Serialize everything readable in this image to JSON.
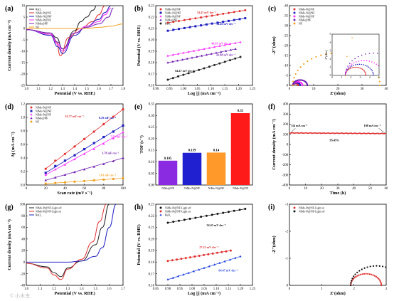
{
  "chart_data": [
    {
      "panel": "(a)",
      "type": "line",
      "xlabel": "Potential (V vs. RHE)",
      "ylabel": "Current density (mA cm⁻²)",
      "xlim": [
        1.0,
        1.8
      ],
      "ylim": [
        -25,
        10
      ],
      "xticks": [
        "1.0",
        "1.1",
        "1.2",
        "1.3",
        "1.4",
        "1.5",
        "1.6",
        "1.7",
        "1.8"
      ],
      "yticks": [
        "-25",
        "-20",
        "-15",
        "-10",
        "-5",
        "0",
        "5",
        "10"
      ],
      "legend_position": "top-left",
      "series": [
        {
          "name": "RuO₂",
          "color": "#222222",
          "x": [
            1.0,
            1.2,
            1.25,
            1.3,
            1.4,
            1.45,
            1.5,
            1.55,
            1.6
          ],
          "y": [
            -0.5,
            -2,
            -4,
            -9,
            -1,
            3,
            5,
            8,
            12
          ]
        },
        {
          "name": "NiMo-Pt@NF",
          "color": "#e03030",
          "x": [
            1.0,
            1.2,
            1.25,
            1.28,
            1.35,
            1.45,
            1.55,
            1.6,
            1.65
          ],
          "y": [
            -0.5,
            -2.5,
            -6,
            -12,
            -4,
            0,
            3,
            6,
            10
          ]
        },
        {
          "name": "NiMo-Ni@NF",
          "color": "#2020c0",
          "x": [
            1.0,
            1.2,
            1.26,
            1.3,
            1.4,
            1.5,
            1.6,
            1.65,
            1.7
          ],
          "y": [
            -0.5,
            -3,
            -8,
            -11,
            -3,
            1,
            4,
            7,
            10
          ]
        },
        {
          "name": "NiMo-Pt@NF",
          "color": "#ff30ff",
          "x": [
            1.0,
            1.2,
            1.26,
            1.3,
            1.4,
            1.5,
            1.6,
            1.65,
            1.7
          ],
          "y": [
            -0.5,
            -2.5,
            -7,
            -10,
            -2,
            1,
            3,
            6,
            9
          ]
        },
        {
          "name": "NiMo@NF",
          "color": "#7020b0",
          "x": [
            1.0,
            1.2,
            1.26,
            1.3,
            1.4,
            1.5,
            1.6,
            1.68,
            1.72
          ],
          "y": [
            -0.5,
            -2,
            -6,
            -9,
            -2,
            0.5,
            2,
            5,
            9
          ]
        },
        {
          "name": "NF",
          "color": "#f0a020",
          "x": [
            1.0,
            1.2,
            1.3,
            1.4,
            1.5,
            1.6,
            1.7,
            1.8
          ],
          "y": [
            0,
            0,
            0,
            0,
            0,
            0.5,
            1,
            2
          ]
        }
      ]
    },
    {
      "panel": "(b)",
      "type": "scatter",
      "xlabel": "Log |j| (mA cm⁻²)",
      "ylabel": "Potential (V vs. RHE)",
      "xlim": [
        0.85,
        1.25
      ],
      "ylim": [
        0.16,
        0.23
      ],
      "xticks": [
        "0.90",
        "0.95",
        "1.00",
        "1.05",
        "1.10",
        "1.15",
        "1.20",
        "1.25"
      ],
      "yticks": [
        "0.16",
        "0.17",
        "0.18",
        "0.19",
        "0.20",
        "0.21",
        "0.22",
        "0.23"
      ],
      "legend_position": "top-left",
      "series": [
        {
          "name": "NiMo-Pt@NF",
          "color": "#e03030",
          "marker": "circle",
          "label": "34.43 mV dec⁻¹",
          "x": [
            0.9,
            1.22
          ],
          "y": [
            0.215,
            0.226
          ]
        },
        {
          "name": "NiMo-Ni@NF",
          "color": "#2020c0",
          "marker": "square",
          "label": "34.46 mV dec⁻¹",
          "x": [
            0.9,
            1.22
          ],
          "y": [
            0.208,
            0.219
          ]
        },
        {
          "name": "NiMo-Pt@NF",
          "color": "#ff30ff",
          "marker": "triangle",
          "label": "40.93 mV dec⁻¹",
          "x": [
            0.9,
            1.2
          ],
          "y": [
            0.186,
            0.198
          ]
        },
        {
          "name": "NiMo@NF",
          "color": "#7020b0",
          "marker": "triangle",
          "label": "41.88 mV dec⁻¹",
          "x": [
            0.9,
            1.18
          ],
          "y": [
            0.18,
            0.192
          ]
        },
        {
          "name": "RuO₂",
          "color": "#222222",
          "marker": "circle",
          "label": "64.47 mV dec⁻¹",
          "x": [
            0.9,
            1.2
          ],
          "y": [
            0.165,
            0.185
          ]
        }
      ]
    },
    {
      "panel": "(c)",
      "type": "scatter",
      "xlabel": "Z'(ohm)",
      "ylabel": "-Z''(ohm)",
      "xlim": [
        0,
        40
      ],
      "ylim": [
        0,
        -40
      ],
      "xticks": [
        "0",
        "10",
        "20",
        "30",
        "40"
      ],
      "yticks": [
        "0",
        "-5",
        "-10",
        "-15",
        "-20",
        "-25",
        "-30",
        "-35",
        "-40"
      ],
      "legend_position": "top-left",
      "series": [
        {
          "name": "NiMo-Pt@NF",
          "color": "#e03030",
          "R0": 1.4,
          "R": 2.2
        },
        {
          "name": "NiMo-Ni@NF",
          "color": "#2020c0",
          "R0": 1.4,
          "R": 3.0
        },
        {
          "name": "NiMo-Pt@NF",
          "color": "#ff30ff",
          "R0": 1.4,
          "R": 4.0
        },
        {
          "name": "NiMo@NF",
          "color": "#7020b0",
          "R0": 1.4,
          "R": 6.0
        },
        {
          "name": "NF",
          "color": "#f0a020",
          "R0": 1.4,
          "R": 36.0
        }
      ],
      "inset_xticks": [
        "0",
        "1",
        "2",
        "3",
        "4",
        "5"
      ],
      "inset_yticks": [
        "0",
        "-1",
        "-2",
        "-3",
        "-4",
        "-5"
      ],
      "inset_ylabel": "Z''(ohm)"
    },
    {
      "panel": "(d)",
      "type": "scatter",
      "xlabel": "Scan rate (mV s⁻¹)",
      "ylabel": "Δj (mA cm⁻²)",
      "xlim": [
        0,
        100
      ],
      "ylim": [
        0,
        1.2
      ],
      "xticks": [
        "0",
        "20",
        "40",
        "60",
        "80",
        "100"
      ],
      "yticks": [
        "0.0",
        "0.2",
        "0.4",
        "0.6",
        "0.8",
        "1.0",
        "1.2"
      ],
      "legend_position": "top-left",
      "series": [
        {
          "name": "NiMo-Pt@NF",
          "color": "#e03030",
          "marker": "circle",
          "label": "10.77 mF cm⁻²",
          "x": [
            20,
            30,
            40,
            50,
            60,
            70,
            80,
            90,
            100
          ],
          "y": [
            0.24,
            0.36,
            0.46,
            0.57,
            0.68,
            0.79,
            0.9,
            1.01,
            1.12
          ]
        },
        {
          "name": "NiMo-Ni@NF",
          "color": "#2020c0",
          "marker": "square",
          "label": "8.29 mF cm⁻²",
          "x": [
            20,
            30,
            40,
            50,
            60,
            70,
            80,
            90,
            100
          ],
          "y": [
            0.18,
            0.28,
            0.36,
            0.44,
            0.53,
            0.62,
            0.71,
            0.79,
            0.88
          ]
        },
        {
          "name": "NiMo-Pt@NF",
          "color": "#ff30ff",
          "marker": "triangle",
          "label": "7.54 mF cm⁻²",
          "x": [
            20,
            30,
            40,
            50,
            60,
            70,
            80,
            90,
            100
          ],
          "y": [
            0.15,
            0.23,
            0.3,
            0.38,
            0.46,
            0.53,
            0.61,
            0.69,
            0.78
          ]
        },
        {
          "name": "NiMo@NF",
          "color": "#7020b0",
          "marker": "triangle",
          "label": "3.78 mF cm⁻²",
          "x": [
            20,
            30,
            40,
            50,
            60,
            70,
            80,
            90,
            100
          ],
          "y": [
            0.07,
            0.11,
            0.15,
            0.19,
            0.23,
            0.27,
            0.31,
            0.35,
            0.4
          ]
        },
        {
          "name": "NF",
          "color": "#f0a020",
          "marker": "circle",
          "label": "1.03 mF cm⁻²",
          "x": [
            20,
            30,
            40,
            50,
            60,
            70,
            80,
            90,
            100
          ],
          "y": [
            0.02,
            0.03,
            0.04,
            0.05,
            0.06,
            0.07,
            0.08,
            0.09,
            0.1
          ]
        }
      ]
    },
    {
      "panel": "(e)",
      "type": "bar",
      "ylabel": "TOF (s⁻¹)",
      "ylim": [
        0,
        0.35
      ],
      "yticks": [
        "0.00",
        "0.05",
        "0.10",
        "0.15",
        "0.20",
        "0.25",
        "0.30",
        "0.35"
      ],
      "categories": [
        "NiMo@NF",
        "NiMo-Pt@NF",
        "NiMo-Ni@NF",
        "NiMo-Pt@NF"
      ],
      "values": [
        0.105,
        0.139,
        0.14,
        0.31
      ],
      "value_labels": [
        "0.105",
        "0.139",
        "0.14",
        "0.31"
      ],
      "colors": [
        "#8a2be2",
        "#2020d0",
        "#ff9a2a",
        "#ff1a1a"
      ]
    },
    {
      "panel": "(f)",
      "type": "line",
      "xlabel": "Time (h)",
      "ylabel": "Current density (mA cm⁻²)",
      "xlim": [
        0,
        65
      ],
      "ylim": [
        -400,
        400
      ],
      "xticks": [
        "0",
        "10",
        "20",
        "30",
        "40",
        "50",
        "60"
      ],
      "yticks": [
        "-400",
        "-300",
        "-200",
        "-100",
        "0",
        "100",
        "200",
        "300",
        "400"
      ],
      "series": [
        {
          "name": "",
          "color": "#e03030",
          "x": [
            0,
            10,
            20,
            30,
            40,
            50,
            60,
            65
          ],
          "y": [
            114,
            112,
            111,
            110,
            109,
            108,
            108,
            108
          ]
        }
      ],
      "annotations": [
        "114 mA cm⁻²",
        "95.45%",
        "108 mA cm⁻²"
      ]
    },
    {
      "panel": "(g)",
      "type": "line",
      "xlabel": "Potential (V vs. RHE)",
      "ylabel": "Current density (mA cm⁻²)",
      "xlim": [
        1.0,
        1.7
      ],
      "ylim": [
        -40,
        100
      ],
      "xticks": [
        "1.0",
        "1.1",
        "1.2",
        "1.3",
        "1.4",
        "1.5",
        "1.6",
        "1.7"
      ],
      "yticks": [
        "-40",
        "-20",
        "0",
        "20",
        "40",
        "60",
        "80",
        "100"
      ],
      "legend_position": "top-left",
      "series": [
        {
          "name": "NiMo-Pt@NF-Light off",
          "color": "#222222",
          "x": [
            1.0,
            1.15,
            1.2,
            1.25,
            1.3,
            1.4,
            1.5,
            1.55,
            1.6
          ],
          "y": [
            -2,
            -8,
            -18,
            -25,
            -10,
            2,
            30,
            60,
            100
          ]
        },
        {
          "name": "NiMo-Pt@NF-Light on",
          "color": "#e03030",
          "x": [
            1.0,
            1.15,
            1.2,
            1.25,
            1.3,
            1.4,
            1.48,
            1.53,
            1.58
          ],
          "y": [
            -2,
            -10,
            -22,
            -30,
            -12,
            5,
            35,
            70,
            100
          ]
        },
        {
          "name": "RuO₂",
          "color": "#2020c0",
          "x": [
            1.0,
            1.2,
            1.3,
            1.4,
            1.5,
            1.55,
            1.6,
            1.65
          ],
          "y": [
            0,
            0,
            0,
            2,
            10,
            25,
            60,
            100
          ]
        }
      ]
    },
    {
      "panel": "(h)",
      "type": "scatter",
      "xlabel": "Log |j| (mA cm⁻²)",
      "ylabel": "Potential (V vs. RHE)",
      "xlim": [
        0.85,
        1.25
      ],
      "ylim": [
        0.16,
        0.23
      ],
      "xticks": [
        "0.85",
        "0.90",
        "0.95",
        "1.00",
        "1.05",
        "1.10",
        "1.15",
        "1.20",
        "1.25"
      ],
      "yticks": [
        "0.16",
        "0.17",
        "0.18",
        "0.19",
        "0.20",
        "0.21",
        "0.22",
        "0.23"
      ],
      "legend_position": "top-left",
      "series": [
        {
          "name": "NiMo-Pt@NF-Light off",
          "color": "#111111",
          "marker": "circle",
          "label": "34.43 mV dec⁻¹",
          "x": [
            0.9,
            1.22
          ],
          "y": [
            0.214,
            0.226
          ]
        },
        {
          "name": "NiMo-Pt@NF-Light on",
          "color": "#e03030",
          "marker": "circle",
          "label": "27.32 mV dec⁻¹",
          "x": [
            0.9,
            1.16
          ],
          "y": [
            0.181,
            0.19
          ]
        },
        {
          "name": "RuO₂",
          "color": "#2040e0",
          "marker": "triangle",
          "label": "64.47 mV dec⁻¹",
          "x": [
            0.9,
            1.2
          ],
          "y": [
            0.165,
            0.185
          ]
        }
      ]
    },
    {
      "panel": "(i)",
      "type": "scatter",
      "xlabel": "Z'(ohm)",
      "ylabel": "-Z''(ohm)",
      "xlim": [
        0,
        3
      ],
      "ylim": [
        0,
        -3
      ],
      "xticks": [
        "0",
        "1",
        "2",
        "3"
      ],
      "yticks": [
        "0",
        "-1",
        "-2",
        "-3"
      ],
      "legend_position": "top-left",
      "series": [
        {
          "name": "NiMo-Pt@NF-Light on",
          "color": "#e03030",
          "R0": 1.9,
          "R": 0.95
        },
        {
          "name": "NiMo-Pt@NF-Light off",
          "color": "#111111",
          "R0": 1.9,
          "R": 1.6
        }
      ]
    }
  ],
  "watermark": "© 小木虫"
}
